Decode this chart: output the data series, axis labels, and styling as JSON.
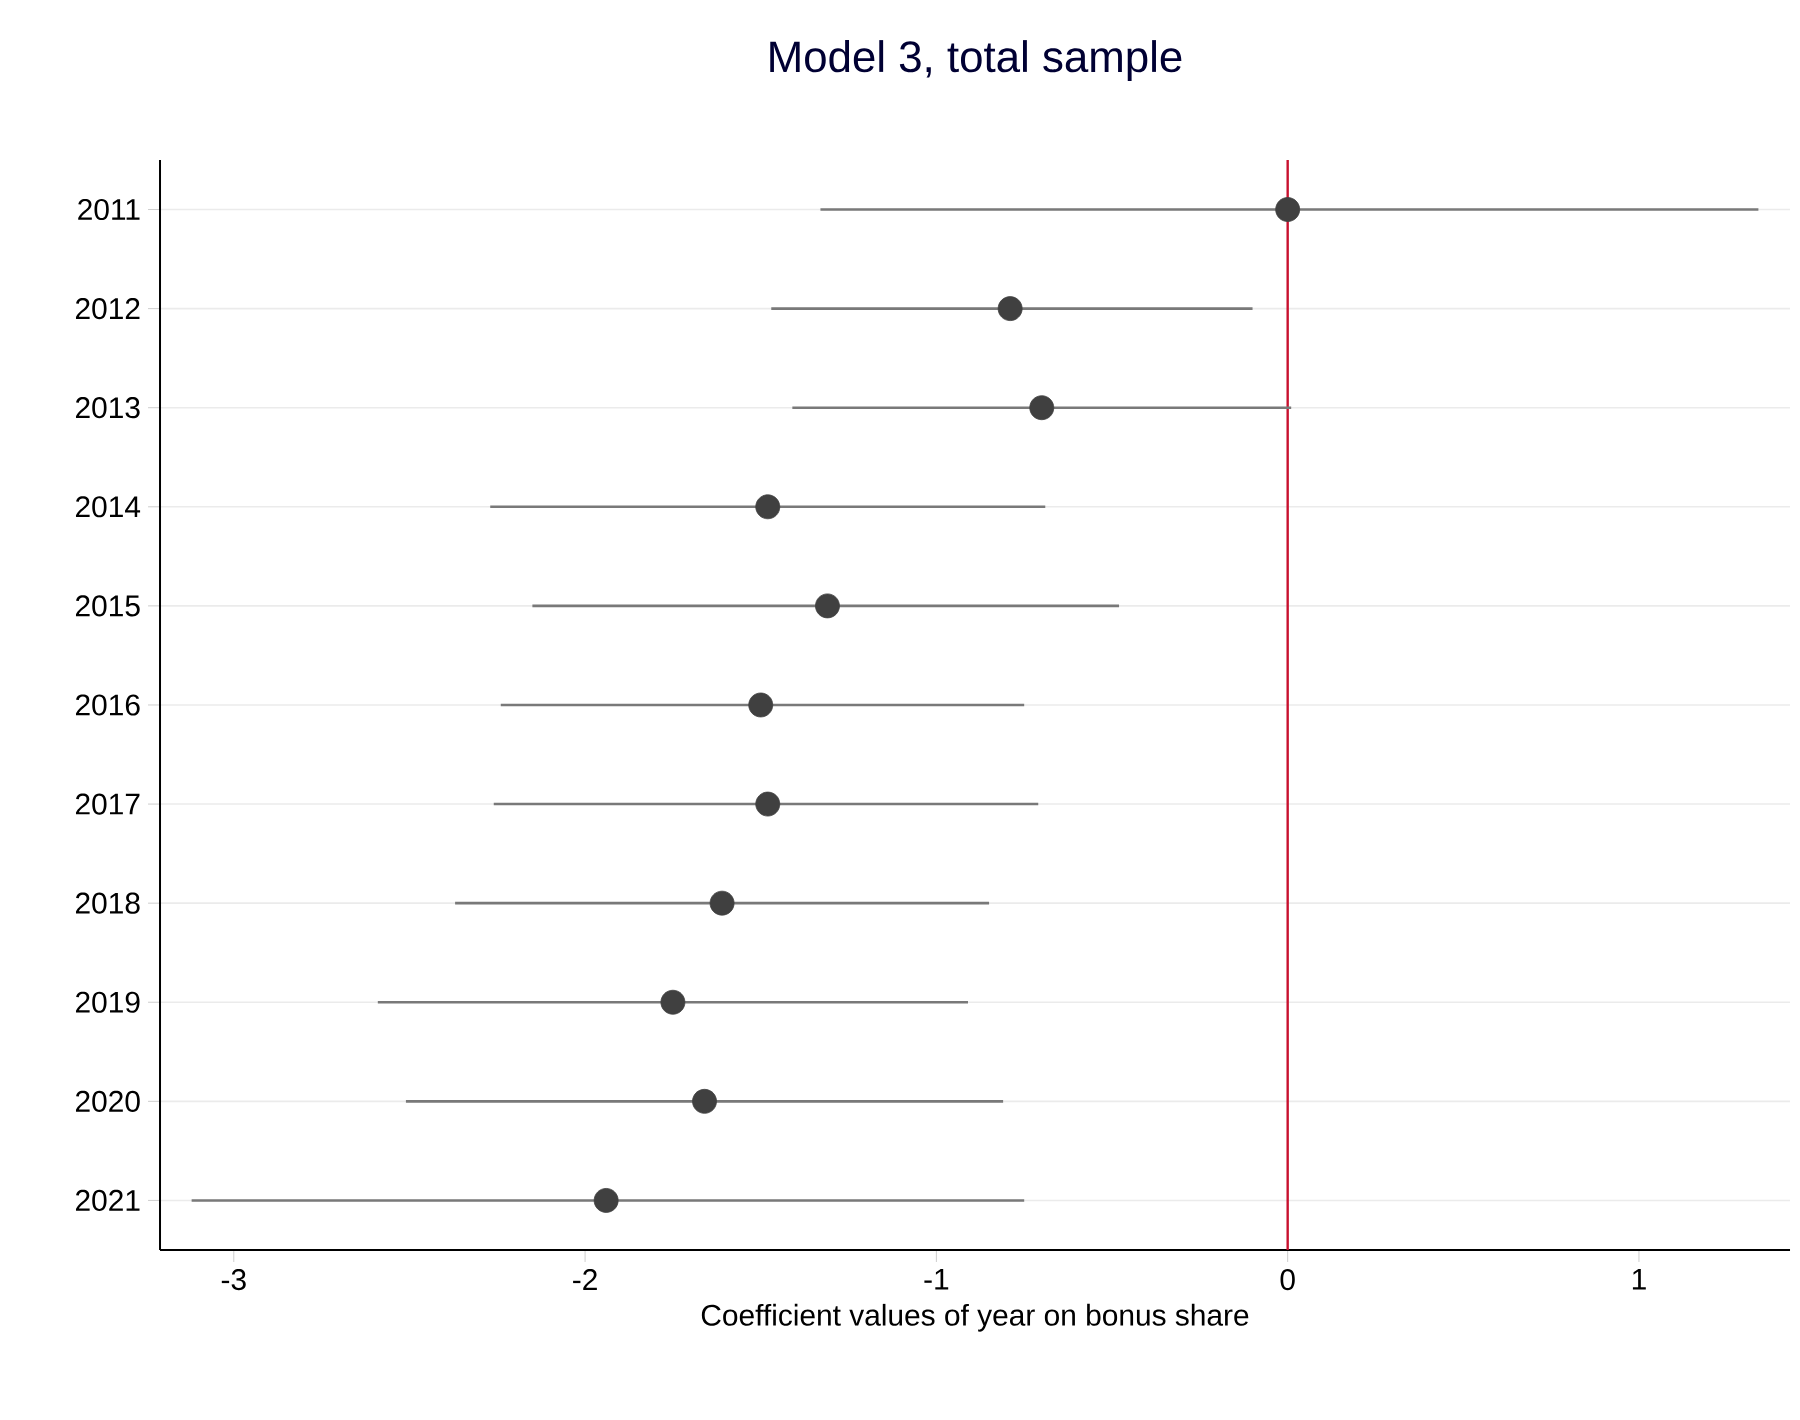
{
  "chart_data": {
    "type": "scatter",
    "orientation": "horizontal",
    "title": "Model 3, total sample",
    "xlabel": "Coefficient values of year on bonus share",
    "categories": [
      "2011",
      "2012",
      "2013",
      "2014",
      "2015",
      "2016",
      "2017",
      "2018",
      "2019",
      "2020",
      "2021"
    ],
    "values": [
      0.0,
      -0.79,
      -0.7,
      -1.48,
      -1.31,
      -1.5,
      -1.48,
      -1.61,
      -1.75,
      -1.66,
      -1.94
    ],
    "errors": [
      [
        -1.33,
        1.34
      ],
      [
        -1.47,
        -0.1
      ],
      [
        -1.41,
        0.01
      ],
      [
        -2.27,
        -0.69
      ],
      [
        -2.15,
        -0.48
      ],
      [
        -2.24,
        -0.75
      ],
      [
        -2.26,
        -0.71
      ],
      [
        -2.37,
        -0.85
      ],
      [
        -2.59,
        -0.91
      ],
      [
        -2.51,
        -0.81
      ],
      [
        -3.12,
        -0.75
      ]
    ],
    "color": "#404040",
    "marker": "circle",
    "grid": "y",
    "xlim": [
      -3.21,
      1.43
    ],
    "xticks": [
      -3,
      -2,
      -1,
      0,
      1
    ],
    "ref_lines": [
      {
        "axis": "x",
        "value": 0,
        "color": "#c8102e"
      }
    ]
  }
}
